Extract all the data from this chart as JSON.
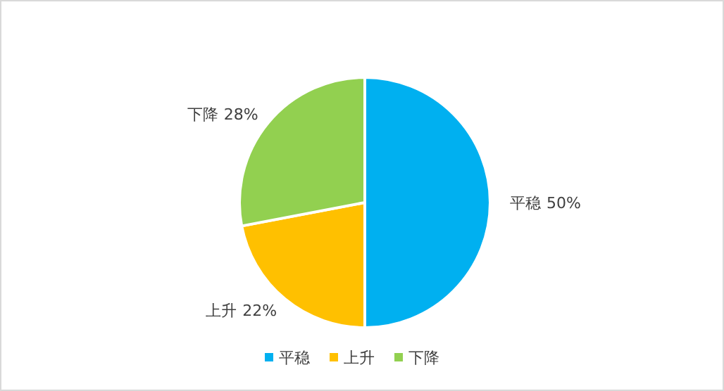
{
  "chart_data": {
    "type": "pie",
    "categories": [
      "平稳",
      "上升",
      "下降"
    ],
    "values": [
      50,
      22,
      28
    ],
    "value_labels": [
      "50%",
      "22%",
      "28%"
    ],
    "colors": [
      "#00b0f0",
      "#ffc000",
      "#92d050"
    ],
    "legend": "bottom"
  }
}
